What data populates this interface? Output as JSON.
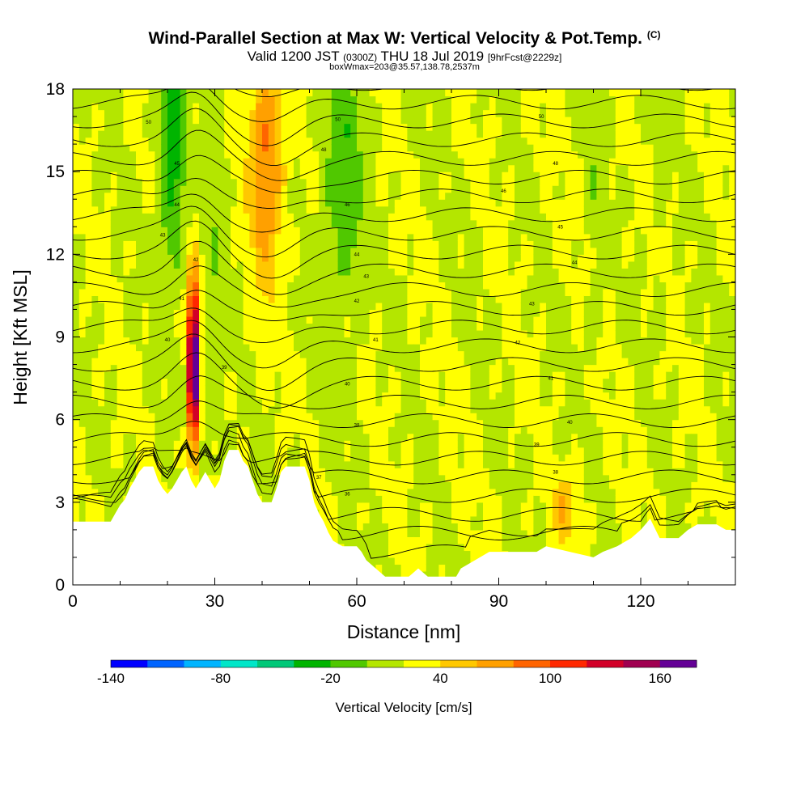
{
  "header": {
    "title": "Wind-Parallel Section at Max W: Vertical Velocity & Pot.Temp.",
    "title_mark": "(C)",
    "subtitle_a": "Valid 1200 JST",
    "subtitle_b": "(0300Z)",
    "subtitle_c": "THU 18 Jul 2019",
    "subtitle_d": "[9hrFcst@2229z]",
    "subtitle2": "boxWmax=203@35.57,138.78,2537m"
  },
  "colors": {
    "scale": [
      "#0000ff",
      "#0064ff",
      "#00b4ff",
      "#00e6c8",
      "#00c878",
      "#00b400",
      "#50c800",
      "#b4e600",
      "#ffff00",
      "#ffc800",
      "#ffa000",
      "#ff6400",
      "#ff2800",
      "#d20028",
      "#a00050",
      "#640096"
    ],
    "terrain": "#ffffff",
    "contour": "#000000"
  },
  "chart_data": {
    "type": "heatmap",
    "xlabel": "Distance [nm]",
    "ylabel": "Height [Kft MSL]",
    "xlim": [
      0,
      140
    ],
    "ylim": [
      0,
      18
    ],
    "xticks": [
      0,
      30,
      60,
      90,
      120
    ],
    "yticks": [
      0,
      3,
      6,
      9,
      12,
      15,
      18
    ],
    "colorbar": {
      "title": "Vertical Velocity [cm/s]",
      "min": -140,
      "max": 180,
      "step": 20,
      "tick_values": [
        -140,
        -80,
        -20,
        40,
        100,
        160
      ]
    },
    "terrain_height": [
      [
        0,
        2.3
      ],
      [
        8,
        2.3
      ],
      [
        9,
        2.6
      ],
      [
        10,
        2.9
      ],
      [
        11,
        3.1
      ],
      [
        12,
        3.5
      ],
      [
        13,
        3.8
      ],
      [
        14,
        4.1
      ],
      [
        15,
        4.3
      ],
      [
        17,
        4.3
      ],
      [
        18,
        3.8
      ],
      [
        19,
        3.5
      ],
      [
        20,
        3.3
      ],
      [
        21,
        3.5
      ],
      [
        22,
        3.8
      ],
      [
        23,
        4.1
      ],
      [
        24,
        4.3
      ],
      [
        25,
        3.8
      ],
      [
        26,
        3.5
      ],
      [
        27,
        3.8
      ],
      [
        28,
        4.1
      ],
      [
        29,
        3.8
      ],
      [
        30,
        3.5
      ],
      [
        31,
        3.8
      ],
      [
        32,
        4.5
      ],
      [
        33,
        4.9
      ],
      [
        35,
        4.9
      ],
      [
        36,
        4.5
      ],
      [
        37,
        4.3
      ],
      [
        38,
        3.8
      ],
      [
        39,
        3.3
      ],
      [
        40,
        3.0
      ],
      [
        42,
        3.0
      ],
      [
        43,
        3.5
      ],
      [
        44,
        4.1
      ],
      [
        45,
        4.3
      ],
      [
        49,
        4.3
      ],
      [
        50,
        3.8
      ],
      [
        51,
        3.0
      ],
      [
        52,
        2.6
      ],
      [
        53,
        2.3
      ],
      [
        54,
        1.9
      ],
      [
        55,
        1.6
      ],
      [
        57,
        1.4
      ],
      [
        60,
        1.4
      ],
      [
        61,
        1.2
      ],
      [
        62,
        0.9
      ],
      [
        64,
        0.6
      ],
      [
        66,
        0.3
      ],
      [
        71,
        0.3
      ],
      [
        73,
        0.6
      ],
      [
        75,
        0.3
      ],
      [
        81,
        0.3
      ],
      [
        82,
        0.6
      ],
      [
        85,
        0.9
      ],
      [
        88,
        1.2
      ],
      [
        98,
        1.2
      ],
      [
        100,
        1.4
      ],
      [
        105,
        1.2
      ],
      [
        110,
        1.0
      ],
      [
        112,
        1.2
      ],
      [
        115,
        1.4
      ],
      [
        118,
        1.7
      ],
      [
        120,
        2.0
      ],
      [
        122,
        2.4
      ],
      [
        124,
        1.7
      ],
      [
        128,
        1.7
      ],
      [
        130,
        2.0
      ],
      [
        132,
        2.2
      ],
      [
        136,
        2.2
      ],
      [
        138,
        2.0
      ],
      [
        140,
        2.0
      ]
    ],
    "velocity_features": [
      {
        "name": "updraft-core",
        "x": 25.5,
        "y": 8.0,
        "sx": 0.8,
        "sy": 2.2,
        "amp": 185
      },
      {
        "name": "updraft-tower",
        "x": 41,
        "y": 15.5,
        "sx": 2.5,
        "sy": 3.0,
        "amp": 65
      },
      {
        "name": "downdraft-band",
        "x": 57,
        "y": 14.5,
        "sx": 3.0,
        "sy": 3.5,
        "amp": -35
      },
      {
        "name": "downdraft-west",
        "x": 21,
        "y": 15.5,
        "sx": 2.0,
        "sy": 3.0,
        "amp": -55
      },
      {
        "name": "updraft-low",
        "x": 104,
        "y": 2.8,
        "sx": 2.0,
        "sy": 0.8,
        "amp": 35
      }
    ],
    "contour_labels": [
      {
        "x": 16,
        "y": 16.8,
        "text": "50"
      },
      {
        "x": 22,
        "y": 15.3,
        "text": "45"
      },
      {
        "x": 22,
        "y": 13.8,
        "text": "44"
      },
      {
        "x": 19,
        "y": 12.7,
        "text": "43"
      },
      {
        "x": 26,
        "y": 11.8,
        "text": "42"
      },
      {
        "x": 23,
        "y": 10.4,
        "text": "41"
      },
      {
        "x": 20,
        "y": 8.9,
        "text": "40"
      },
      {
        "x": 32,
        "y": 7.9,
        "text": "39"
      },
      {
        "x": 56,
        "y": 16.9,
        "text": "50"
      },
      {
        "x": 53,
        "y": 15.8,
        "text": "48"
      },
      {
        "x": 58,
        "y": 13.8,
        "text": "46"
      },
      {
        "x": 60,
        "y": 12.0,
        "text": "44"
      },
      {
        "x": 62,
        "y": 11.2,
        "text": "43"
      },
      {
        "x": 60,
        "y": 10.3,
        "text": "42"
      },
      {
        "x": 64,
        "y": 8.9,
        "text": "41"
      },
      {
        "x": 58,
        "y": 7.3,
        "text": "40"
      },
      {
        "x": 60,
        "y": 5.8,
        "text": "38"
      },
      {
        "x": 52,
        "y": 3.9,
        "text": "37"
      },
      {
        "x": 58,
        "y": 3.3,
        "text": "36"
      },
      {
        "x": 99,
        "y": 17.0,
        "text": "50"
      },
      {
        "x": 102,
        "y": 15.3,
        "text": "48"
      },
      {
        "x": 91,
        "y": 14.3,
        "text": "46"
      },
      {
        "x": 103,
        "y": 13.0,
        "text": "45"
      },
      {
        "x": 106,
        "y": 11.7,
        "text": "44"
      },
      {
        "x": 97,
        "y": 10.2,
        "text": "43"
      },
      {
        "x": 94,
        "y": 8.8,
        "text": "42"
      },
      {
        "x": 101,
        "y": 7.5,
        "text": "41"
      },
      {
        "x": 105,
        "y": 5.9,
        "text": "40"
      },
      {
        "x": 98,
        "y": 5.1,
        "text": "39"
      },
      {
        "x": 102,
        "y": 4.1,
        "text": "38"
      }
    ]
  }
}
